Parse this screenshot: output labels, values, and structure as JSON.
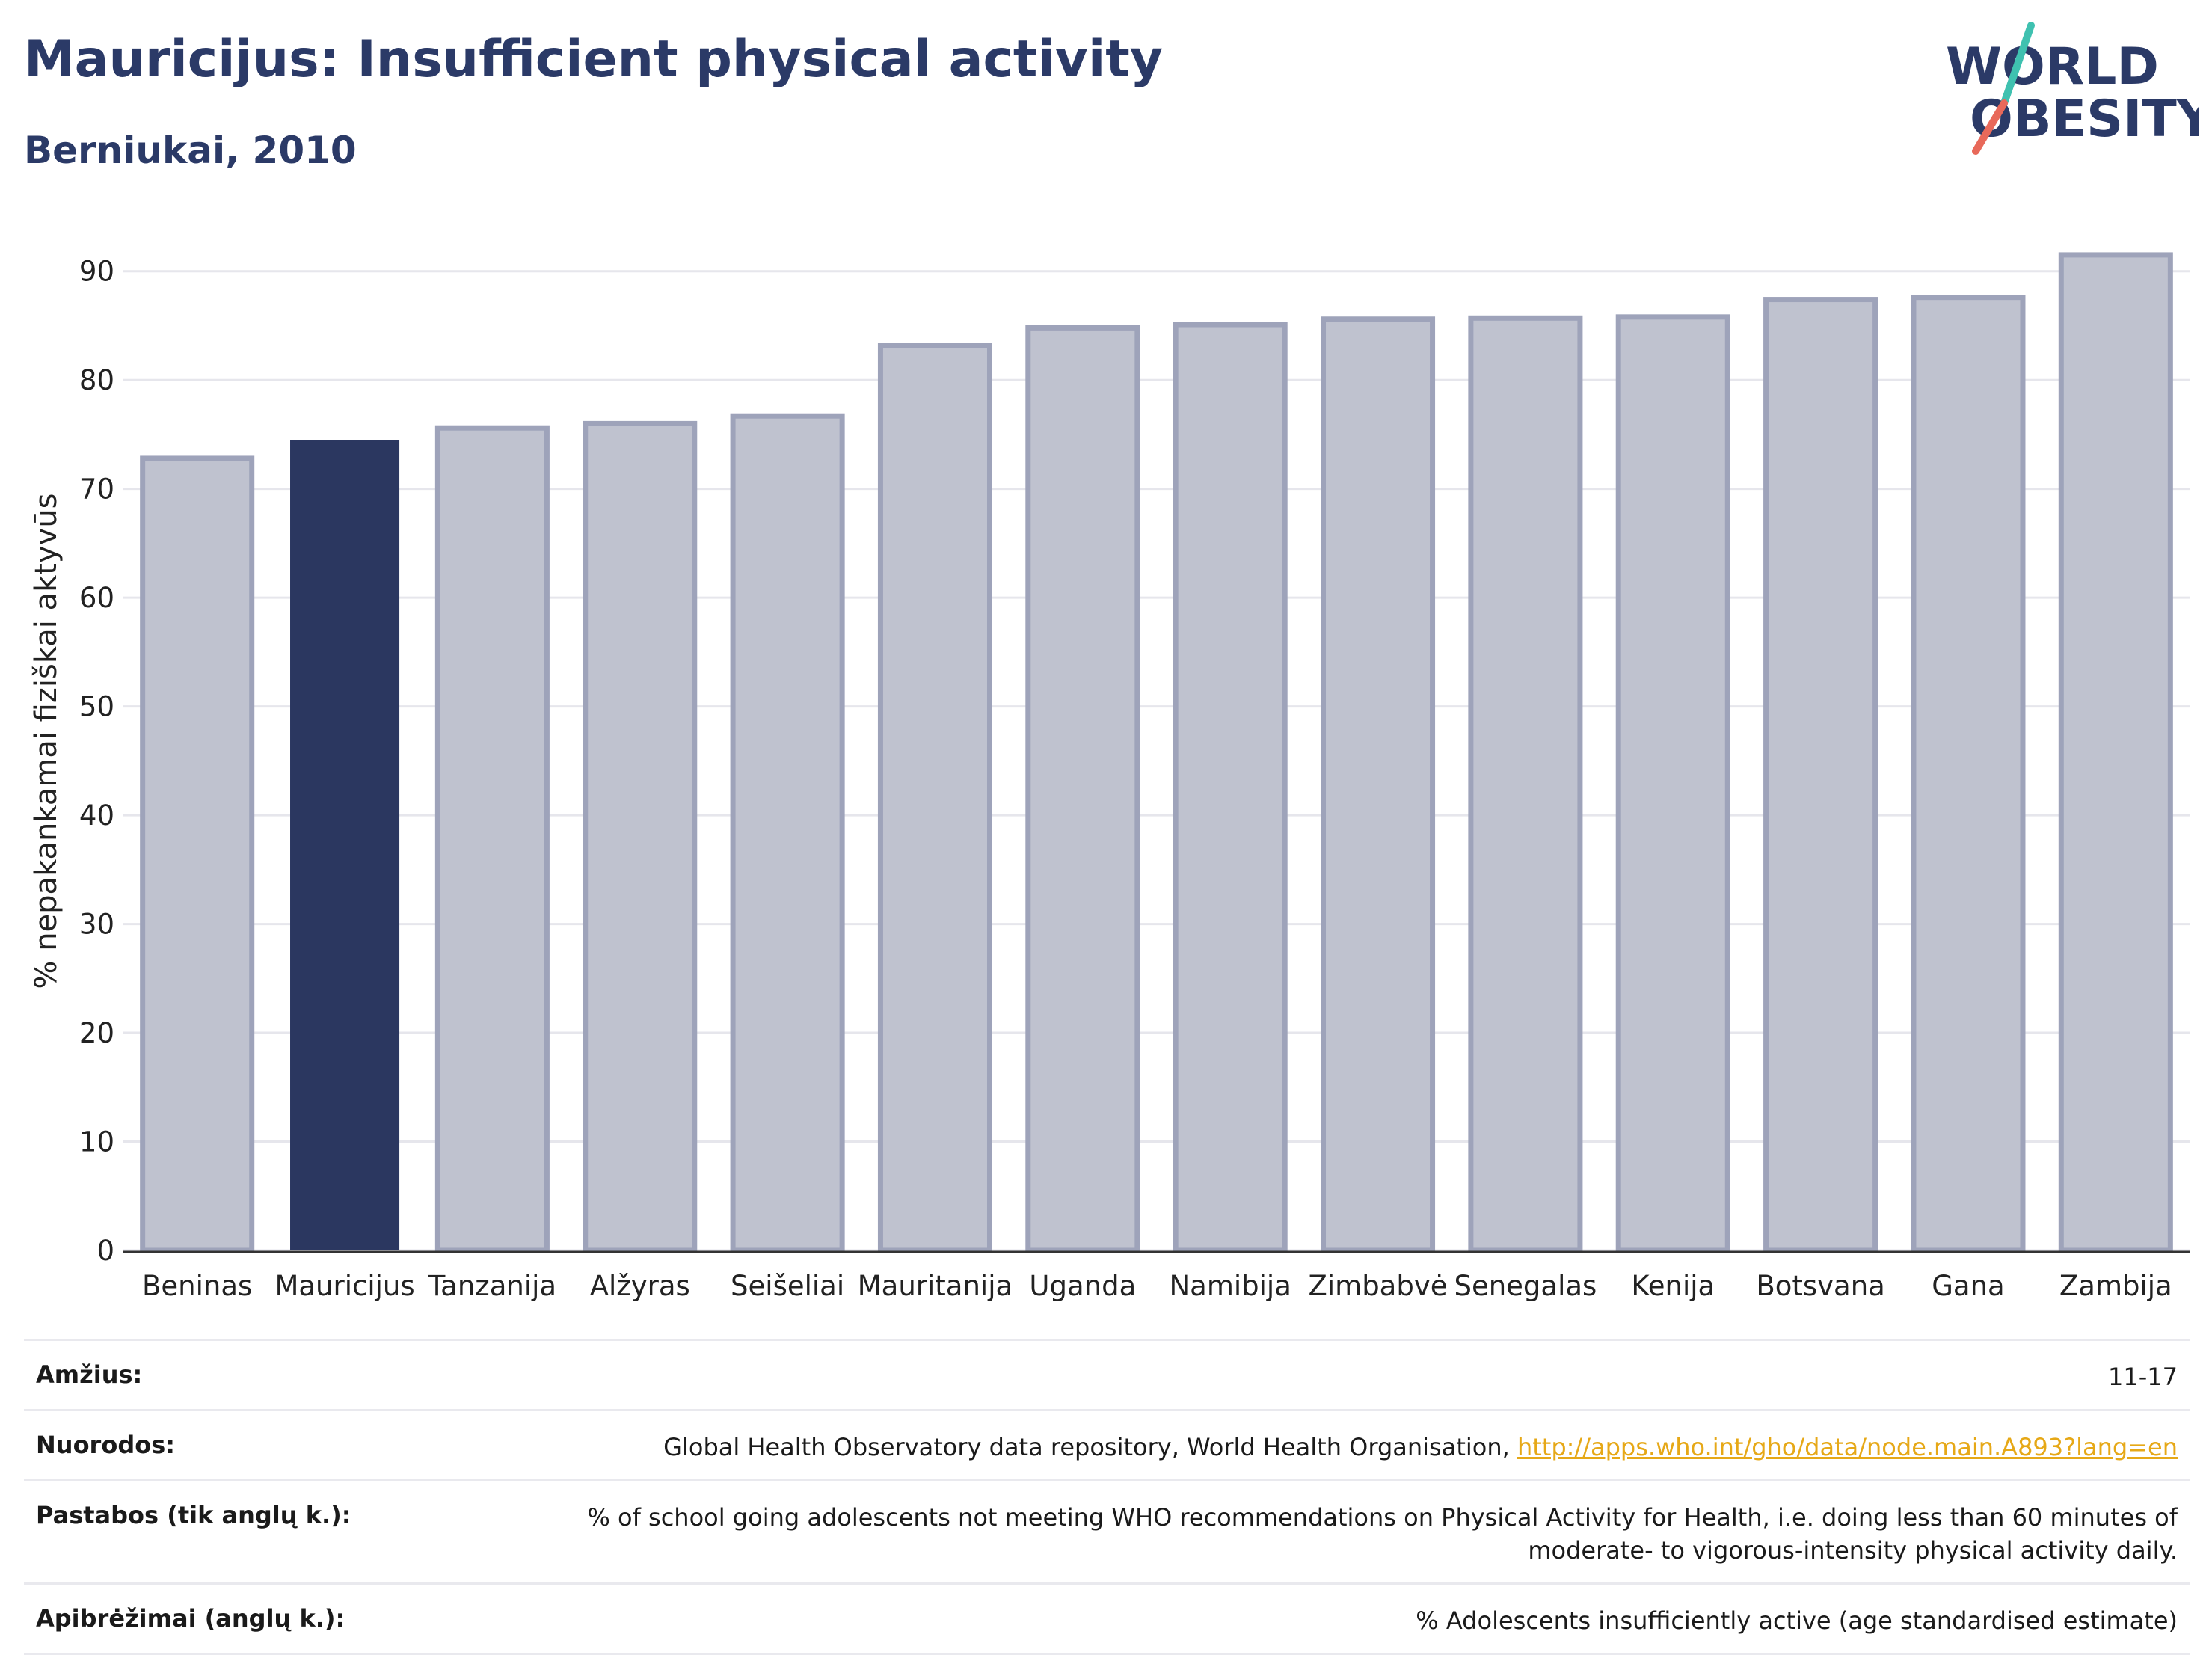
{
  "header": {
    "title": "Mauricijus: Insufficient physical activity",
    "subtitle": "Berniukai, 2010"
  },
  "logo": {
    "line1": "WORLD",
    "line2": "OBESITY",
    "accent_colors": [
      "#3fc1b0",
      "#e8695a"
    ]
  },
  "chart_data": {
    "type": "bar",
    "categories": [
      "Beninas",
      "Mauricijus",
      "Tanzanija",
      "Alžyras",
      "Seišeliai",
      "Mauritanija",
      "Uganda",
      "Namibija",
      "Zimbabvė",
      "Senegalas",
      "Kenija",
      "Botsvana",
      "Gana",
      "Zambija"
    ],
    "values": [
      72.8,
      74.5,
      75.6,
      76.0,
      76.7,
      83.2,
      84.8,
      85.1,
      85.6,
      85.7,
      85.8,
      87.4,
      87.6,
      91.5
    ],
    "highlight": "Mauricijus",
    "ylabel": "% nepakankamai fiziškai aktyvūs",
    "xlabel": "",
    "ylim": [
      0,
      95
    ],
    "yticks": [
      0,
      10,
      20,
      30,
      40,
      50,
      60,
      70,
      80,
      90
    ],
    "grid": true,
    "colors": {
      "bar": "#bfc2cf",
      "bar_stroke": "#9ea3ba",
      "highlight": "#2b3760",
      "grid": "#e6e6ec",
      "axis": "#333333"
    }
  },
  "meta": [
    {
      "label": "Amžius:",
      "value": "11-17"
    },
    {
      "label": "Nuorodos:",
      "value": "Global Health Observatory data repository, World Health Organisation, ",
      "link": "http://apps.who.int/gho/data/node.main.A893?lang=en"
    },
    {
      "label": "Pastabos (tik anglų k.):",
      "value": "% of school going adolescents not meeting WHO recommendations on Physical Activity for Health, i.e. doing less than 60 minutes of moderate- to vigorous-intensity physical activity daily."
    },
    {
      "label": "Apibrėžimai (anglų k.):",
      "value": "% Adolescents insufficiently active (age standardised estimate)"
    }
  ]
}
